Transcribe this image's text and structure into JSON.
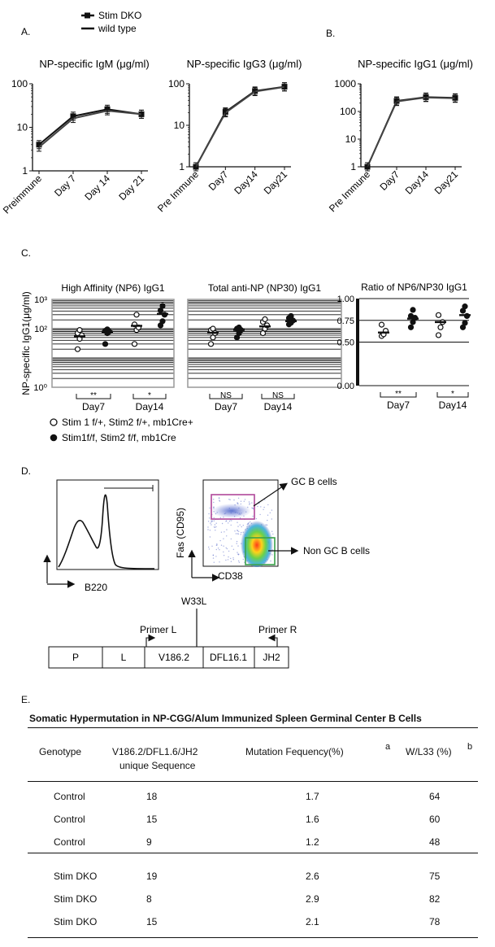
{
  "legend_top": {
    "stim_dko": "Stim DKO",
    "wild_type": "wild type"
  },
  "panel_labels": {
    "a": "A.",
    "b": "B.",
    "c": "C.",
    "d": "D.",
    "e": "E."
  },
  "chart_data": [
    {
      "id": "igm",
      "type": "line",
      "title": "NP-specific IgM (μg/ml)",
      "yscale": "log",
      "ylim": [
        1,
        100
      ],
      "yticks": [
        "1",
        "10",
        "100"
      ],
      "categories": [
        "Preimmune",
        "Day 7",
        "Day 14",
        "Day 21"
      ],
      "series": [
        {
          "name": "Stim DKO",
          "values": [
            4.0,
            18,
            26,
            20
          ]
        },
        {
          "name": "wild type",
          "values": [
            3.5,
            16,
            24,
            20
          ]
        }
      ]
    },
    {
      "id": "igg3",
      "type": "line",
      "title": "NP-specific IgG3 (μg/ml)",
      "yscale": "log",
      "ylim": [
        1,
        100
      ],
      "yticks": [
        "1",
        "10",
        "100"
      ],
      "categories": [
        "Pre Immune",
        "Day7",
        "Day14",
        "Day21"
      ],
      "series": [
        {
          "name": "Stim DKO",
          "values": [
            1.0,
            21,
            67,
            85
          ]
        },
        {
          "name": "wild type",
          "values": [
            1.0,
            20,
            65,
            84
          ]
        }
      ]
    },
    {
      "id": "igg1",
      "type": "line",
      "title": "NP-specific IgG1 (μg/ml)",
      "yscale": "log",
      "ylim": [
        1,
        1000
      ],
      "yticks": [
        "1",
        "10",
        "100",
        "1000"
      ],
      "categories": [
        "Pre Immune",
        "Day7",
        "Day14",
        "Day21"
      ],
      "series": [
        {
          "name": "Stim DKO",
          "values": [
            1.0,
            240,
            330,
            310
          ]
        },
        {
          "name": "wild type",
          "values": [
            1.0,
            230,
            320,
            300
          ]
        }
      ]
    },
    {
      "id": "np6",
      "type": "scatter",
      "title": "High Affinity (NP6) IgG1",
      "ylabel": "NP-specific IgG1(μg/ml)",
      "yscale": "log",
      "ylim": [
        1,
        1000
      ],
      "yticks": [
        "10⁰",
        "10²",
        "10³"
      ],
      "groups": [
        "Day7",
        "Day14"
      ],
      "significance": [
        "**",
        "*"
      ],
      "series": [
        {
          "name": "Stim 1 f/+, Stim2 f/+, mb1Cre+",
          "values": [
            [
              20,
              45,
              60,
              70,
              90
            ],
            [
              30,
              90,
              110,
              140,
              300
            ]
          ]
        },
        {
          "name": "Stim1f/f, Stim2 f/f, mb1Cre",
          "values": [
            [
              30,
              70,
              80,
              85,
              95
            ],
            [
              130,
              180,
              300,
              420,
              600
            ]
          ]
        }
      ],
      "means": [
        [
          55,
          78
        ],
        [
          125,
          320
        ]
      ]
    },
    {
      "id": "np30",
      "type": "scatter",
      "title": "Total anti-NP (NP30) IgG1",
      "yscale": "log",
      "ylim": [
        1,
        1000
      ],
      "groups": [
        "Day7",
        "Day14"
      ],
      "significance": [
        "NS",
        "NS"
      ],
      "series": [
        {
          "name": "Stim 1 f/+, Stim2 f/+, mb1Cre+",
          "values": [
            [
              30,
              50,
              70,
              90,
              100
            ],
            [
              70,
              100,
              130,
              170,
              210
            ]
          ]
        },
        {
          "name": "Stim1f/f, Stim2 f/f, mb1Cre",
          "values": [
            [
              50,
              70,
              90,
              100,
              110
            ],
            [
              140,
              160,
              190,
              230,
              270
            ]
          ]
        }
      ],
      "means": [
        [
          72,
          90
        ],
        [
          120,
          180
        ]
      ]
    },
    {
      "id": "ratio",
      "type": "scatter",
      "title": "Ratio of NP6/NP30 IgG1",
      "ylim": [
        0,
        1.0
      ],
      "yticks": [
        "0.00",
        "0.50",
        "0.75",
        "1.00"
      ],
      "groups": [
        "Day7",
        "Day14"
      ],
      "significance": [
        "**",
        "*"
      ],
      "series": [
        {
          "name": "Stim 1 f/+, Stim2 f/+, mb1Cre+",
          "values": [
            [
              0.57,
              0.59,
              0.63,
              0.7
            ],
            [
              0.58,
              0.67,
              0.73,
              0.81
            ]
          ]
        },
        {
          "name": "Stim1f/f, Stim2 f/f, mb1Cre",
          "values": [
            [
              0.67,
              0.73,
              0.78,
              0.8,
              0.87
            ],
            [
              0.67,
              0.72,
              0.8,
              0.86,
              0.91
            ]
          ]
        }
      ],
      "means": [
        [
          0.61,
          0.77
        ],
        [
          0.73,
          0.81
        ]
      ]
    }
  ],
  "panel_c_legend": {
    "open": "Stim 1 f/+, Stim2 f/+, mb1Cre+",
    "filled": "Stim1f/f, Stim2 f/f, mb1Cre"
  },
  "panel_d": {
    "histogram_xlabel": "B220",
    "flow_ylabel": "Fas (CD95)",
    "flow_xlabel": "CD38",
    "gc_label": "GC B cells",
    "nongc_label": "Non GC B cells",
    "mutation_label": "W33L",
    "primer_l": "Primer L",
    "primer_r": "Primer R",
    "gene_segments": [
      "P",
      "L",
      "V186.2",
      "DFL16.1",
      "JH2"
    ]
  },
  "table": {
    "title": "Somatic Hypermutation in NP-CGG/Alum Immunized Spleen Germinal Center B Cells",
    "headers": {
      "genotype": "Genotype",
      "seq_line1": "V186.2/DFL1.6/JH2",
      "seq_line2": "unique Sequence",
      "freq": "Mutation Fequency(%)",
      "freq_sup": "a",
      "w33": "W/L33 (%)",
      "w33_sup": "b"
    },
    "control_rows": [
      [
        "Control",
        "18",
        "1.7",
        "64"
      ],
      [
        "Control",
        "15",
        "1.6",
        "60"
      ],
      [
        "Control",
        "9",
        "1.2",
        "48"
      ]
    ],
    "dko_rows": [
      [
        "Stim DKO",
        "19",
        "2.6",
        "75"
      ],
      [
        "Stim  DKO",
        "8",
        "2.9",
        "82"
      ],
      [
        "Stim  DKO",
        "15",
        "2.1",
        "78"
      ]
    ]
  }
}
